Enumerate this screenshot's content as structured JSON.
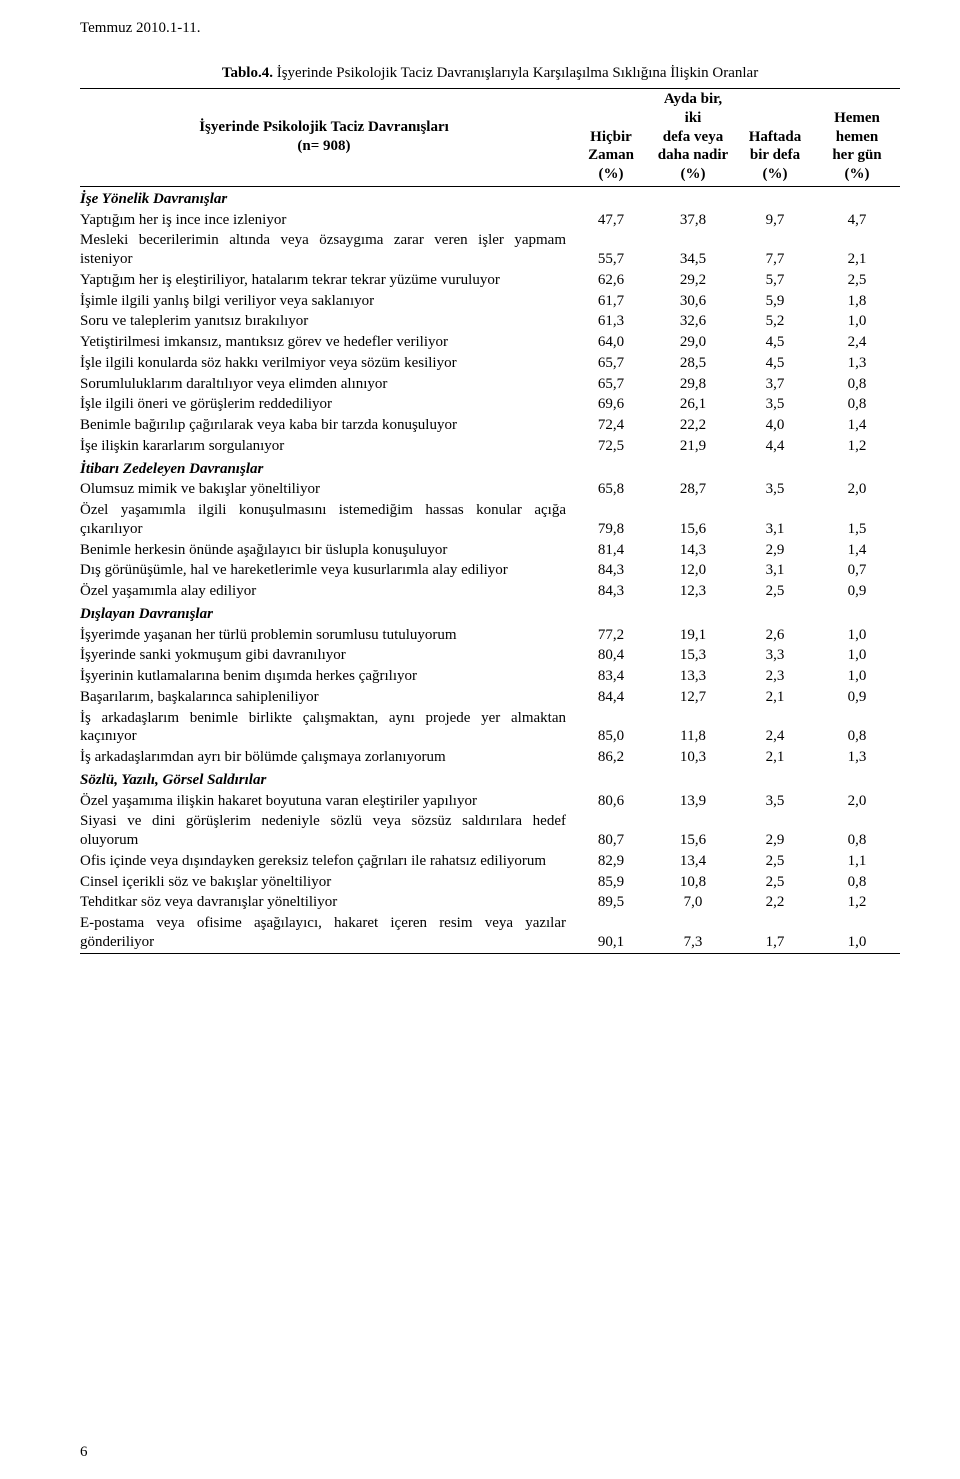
{
  "top_line": "Temmuz 2010.1-11.",
  "caption_bold": "Tablo.4.",
  "caption_rest": " İşyerinde Psikolojik Taciz Davranışlarıyla Karşılaşılma Sıklığına İlişkin Oranlar",
  "header_left_line1": "İşyerinde Psikolojik Taciz Davranışları",
  "header_left_line2": "(n= 908)",
  "columns": [
    {
      "l1": "Hiçbir",
      "l2": "Zaman",
      "l3": "",
      "l4": "(%)"
    },
    {
      "l1": "Ayda bir, iki",
      "l2": "defa  veya",
      "l3": "daha nadir",
      "l4": "(%)"
    },
    {
      "l1": "Haftada",
      "l2": "bir defa",
      "l3": "",
      "l4": "(%)"
    },
    {
      "l1": "Hemen",
      "l2": "hemen",
      "l3": "her gün",
      "l4": "(%)"
    }
  ],
  "rows": [
    {
      "type": "section",
      "label": "İşe Yönelik Davranışlar"
    },
    {
      "label": "Yaptığım her iş ince ince izleniyor",
      "v": [
        "47,7",
        "37,8",
        "9,7",
        "4,7"
      ]
    },
    {
      "label": "Mesleki becerilerimin altında veya özsaygıma zarar veren işler yapmam isteniyor",
      "v": [
        "55,7",
        "34,5",
        "7,7",
        "2,1"
      ]
    },
    {
      "label": "Yaptığım her iş eleştiriliyor, hatalarım tekrar tekrar yüzüme vuruluyor",
      "v": [
        "62,6",
        "29,2",
        "5,7",
        "2,5"
      ]
    },
    {
      "label": "İşimle ilgili yanlış bilgi veriliyor veya saklanıyor",
      "v": [
        "61,7",
        "30,6",
        "5,9",
        "1,8"
      ]
    },
    {
      "label": "Soru ve taleplerim yanıtsız bırakılıyor",
      "v": [
        "61,3",
        "32,6",
        "5,2",
        "1,0"
      ]
    },
    {
      "label": "Yetiştirilmesi imkansız, mantıksız görev ve hedefler veriliyor",
      "v": [
        "64,0",
        "29,0",
        "4,5",
        "2,4"
      ]
    },
    {
      "label": "İşle ilgili konularda söz hakkı verilmiyor veya sözüm kesiliyor",
      "v": [
        "65,7",
        "28,5",
        "4,5",
        "1,3"
      ]
    },
    {
      "label": "Sorumluluklarım daraltılıyor veya elimden alınıyor",
      "v": [
        "65,7",
        "29,8",
        "3,7",
        "0,8"
      ]
    },
    {
      "label": "İşle ilgili öneri ve görüşlerim reddediliyor",
      "v": [
        "69,6",
        "26,1",
        "3,5",
        "0,8"
      ]
    },
    {
      "label": "Benimle bağırılıp çağırılarak veya kaba bir tarzda konuşuluyor",
      "v": [
        "72,4",
        "22,2",
        "4,0",
        "1,4"
      ]
    },
    {
      "label": "İşe ilişkin kararlarım sorgulanıyor",
      "v": [
        "72,5",
        "21,9",
        "4,4",
        "1,2"
      ]
    },
    {
      "type": "section",
      "label": "İtibarı Zedeleyen Davranışlar"
    },
    {
      "label": "Olumsuz mimik ve bakışlar yöneltiliyor",
      "v": [
        "65,8",
        "28,7",
        "3,5",
        "2,0"
      ]
    },
    {
      "label": "Özel yaşamımla ilgili konuşulmasını istemediğim hassas konular açığa çıkarılıyor",
      "v": [
        "79,8",
        "15,6",
        "3,1",
        "1,5"
      ]
    },
    {
      "label": "Benimle herkesin önünde aşağılayıcı bir üslupla konuşuluyor",
      "v": [
        "81,4",
        "14,3",
        "2,9",
        "1,4"
      ]
    },
    {
      "label": "Dış görünüşümle, hal ve hareketlerimle veya kusurlarımla alay ediliyor",
      "v": [
        "84,3",
        "12,0",
        "3,1",
        "0,7"
      ]
    },
    {
      "label": "Özel yaşamımla alay ediliyor",
      "v": [
        "84,3",
        "12,3",
        "2,5",
        "0,9"
      ]
    },
    {
      "type": "section",
      "label": "Dışlayan Davranışlar"
    },
    {
      "label": "İşyerimde yaşanan her türlü problemin sorumlusu tutuluyorum",
      "v": [
        "77,2",
        "19,1",
        "2,6",
        "1,0"
      ]
    },
    {
      "label": "İşyerinde sanki yokmuşum gibi davranılıyor",
      "v": [
        "80,4",
        "15,3",
        "3,3",
        "1,0"
      ]
    },
    {
      "label": "İşyerinin kutlamalarına benim dışımda herkes çağrılıyor",
      "v": [
        "83,4",
        "13,3",
        "2,3",
        "1,0"
      ]
    },
    {
      "label": "Başarılarım, başkalarınca sahipleniliyor",
      "v": [
        "84,4",
        "12,7",
        "2,1",
        "0,9"
      ]
    },
    {
      "label": "İş arkadaşlarım benimle birlikte çalışmaktan, aynı projede yer almaktan kaçınıyor",
      "v": [
        "85,0",
        "11,8",
        "2,4",
        "0,8"
      ]
    },
    {
      "label": "İş arkadaşlarımdan ayrı bir bölümde çalışmaya zorlanıyorum",
      "v": [
        "86,2",
        "10,3",
        "2,1",
        "1,3"
      ]
    },
    {
      "type": "section",
      "label": "Sözlü, Yazılı, Görsel Saldırılar"
    },
    {
      "label": "Özel yaşamıma ilişkin hakaret boyutuna varan eleştiriler yapılıyor",
      "v": [
        "80,6",
        "13,9",
        "3,5",
        "2,0"
      ]
    },
    {
      "label": "Siyasi ve dini görüşlerim nedeniyle sözlü veya sözsüz saldırılara hedef oluyorum",
      "v": [
        "80,7",
        "15,6",
        "2,9",
        "0,8"
      ]
    },
    {
      "label": "Ofis içinde veya dışındayken gereksiz telefon çağrıları ile rahatsız ediliyorum",
      "v": [
        "82,9",
        "13,4",
        "2,5",
        "1,1"
      ]
    },
    {
      "label": "Cinsel içerikli söz ve bakışlar yöneltiliyor",
      "v": [
        "85,9",
        "10,8",
        "2,5",
        "0,8"
      ]
    },
    {
      "label": "Tehditkar söz veya davranışlar yöneltiliyor",
      "v": [
        "89,5",
        "7,0",
        "2,2",
        "1,2"
      ]
    },
    {
      "label": "E-postama veya ofisime aşağılayıcı, hakaret içeren resim veya yazılar gönderiliyor",
      "v": [
        "90,1",
        "7,3",
        "1,7",
        "1,0"
      ]
    }
  ],
  "page_num": "6"
}
